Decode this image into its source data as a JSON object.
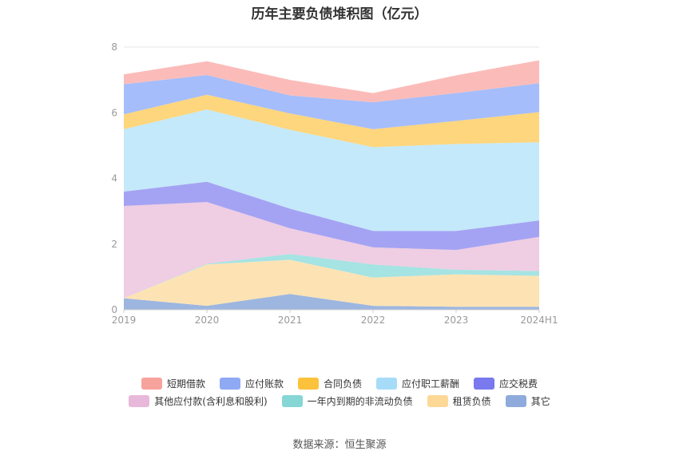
{
  "chart_data": {
    "type": "area",
    "stacked": true,
    "title": "历年主要负债堆积图（亿元）",
    "categories": [
      "2019",
      "2020",
      "2021",
      "2022",
      "2023",
      "2024H1"
    ],
    "ylim": [
      0,
      8
    ],
    "yticks": [
      "0",
      "2",
      "4",
      "6",
      "8"
    ],
    "grid": true,
    "legend_position": "bottom",
    "series": [
      {
        "name": "其它",
        "color": "#9db6e0",
        "values": [
          0.35,
          0.12,
          0.48,
          0.12,
          0.09,
          0.09
        ]
      },
      {
        "name": "租赁负债",
        "color": "#fde3b4",
        "values": [
          0.0,
          1.26,
          1.04,
          0.86,
          0.99,
          0.94
        ]
      },
      {
        "name": "一年内到期的非流动负债",
        "color": "#a6e3e3",
        "values": [
          0.0,
          0.02,
          0.18,
          0.4,
          0.14,
          0.15
        ]
      },
      {
        "name": "其他应付款(含利息和股利)",
        "color": "#efcde3",
        "values": [
          2.81,
          1.88,
          0.78,
          0.52,
          0.6,
          1.04
        ]
      },
      {
        "name": "应交税费",
        "color": "#a4a3f3",
        "values": [
          0.44,
          0.62,
          0.6,
          0.5,
          0.58,
          0.5
        ]
      },
      {
        "name": "应付职工薪酬",
        "color": "#c4e9fa",
        "values": [
          1.9,
          2.2,
          2.4,
          2.55,
          2.65,
          2.38
        ]
      },
      {
        "name": "合同负债",
        "color": "#fed67d",
        "values": [
          0.45,
          0.45,
          0.5,
          0.55,
          0.7,
          0.92
        ]
      },
      {
        "name": "应付账款",
        "color": "#a5bdfa",
        "values": [
          0.92,
          0.6,
          0.55,
          0.82,
          0.85,
          0.88
        ]
      },
      {
        "name": "短期借款",
        "color": "#fbbcb9",
        "values": [
          0.3,
          0.42,
          0.47,
          0.28,
          0.54,
          0.7
        ]
      }
    ]
  },
  "legend": {
    "row1": [
      {
        "label": "短期借款",
        "color": "#f7a39d"
      },
      {
        "label": "应付账款",
        "color": "#8fa9f5"
      },
      {
        "label": "合同负债",
        "color": "#fdc23c"
      },
      {
        "label": "应付职工薪酬",
        "color": "#a7dcf8"
      },
      {
        "label": "应交税费",
        "color": "#7a79ee"
      }
    ],
    "row2": [
      {
        "label": "其他应付款(含利息和股利)",
        "color": "#e8b8da"
      },
      {
        "label": "一年内到期的非流动负债",
        "color": "#86d6d6"
      },
      {
        "label": "租赁负债",
        "color": "#fdd897"
      },
      {
        "label": "其它",
        "color": "#8eabdb"
      }
    ]
  },
  "source": "数据来源：恒生聚源"
}
